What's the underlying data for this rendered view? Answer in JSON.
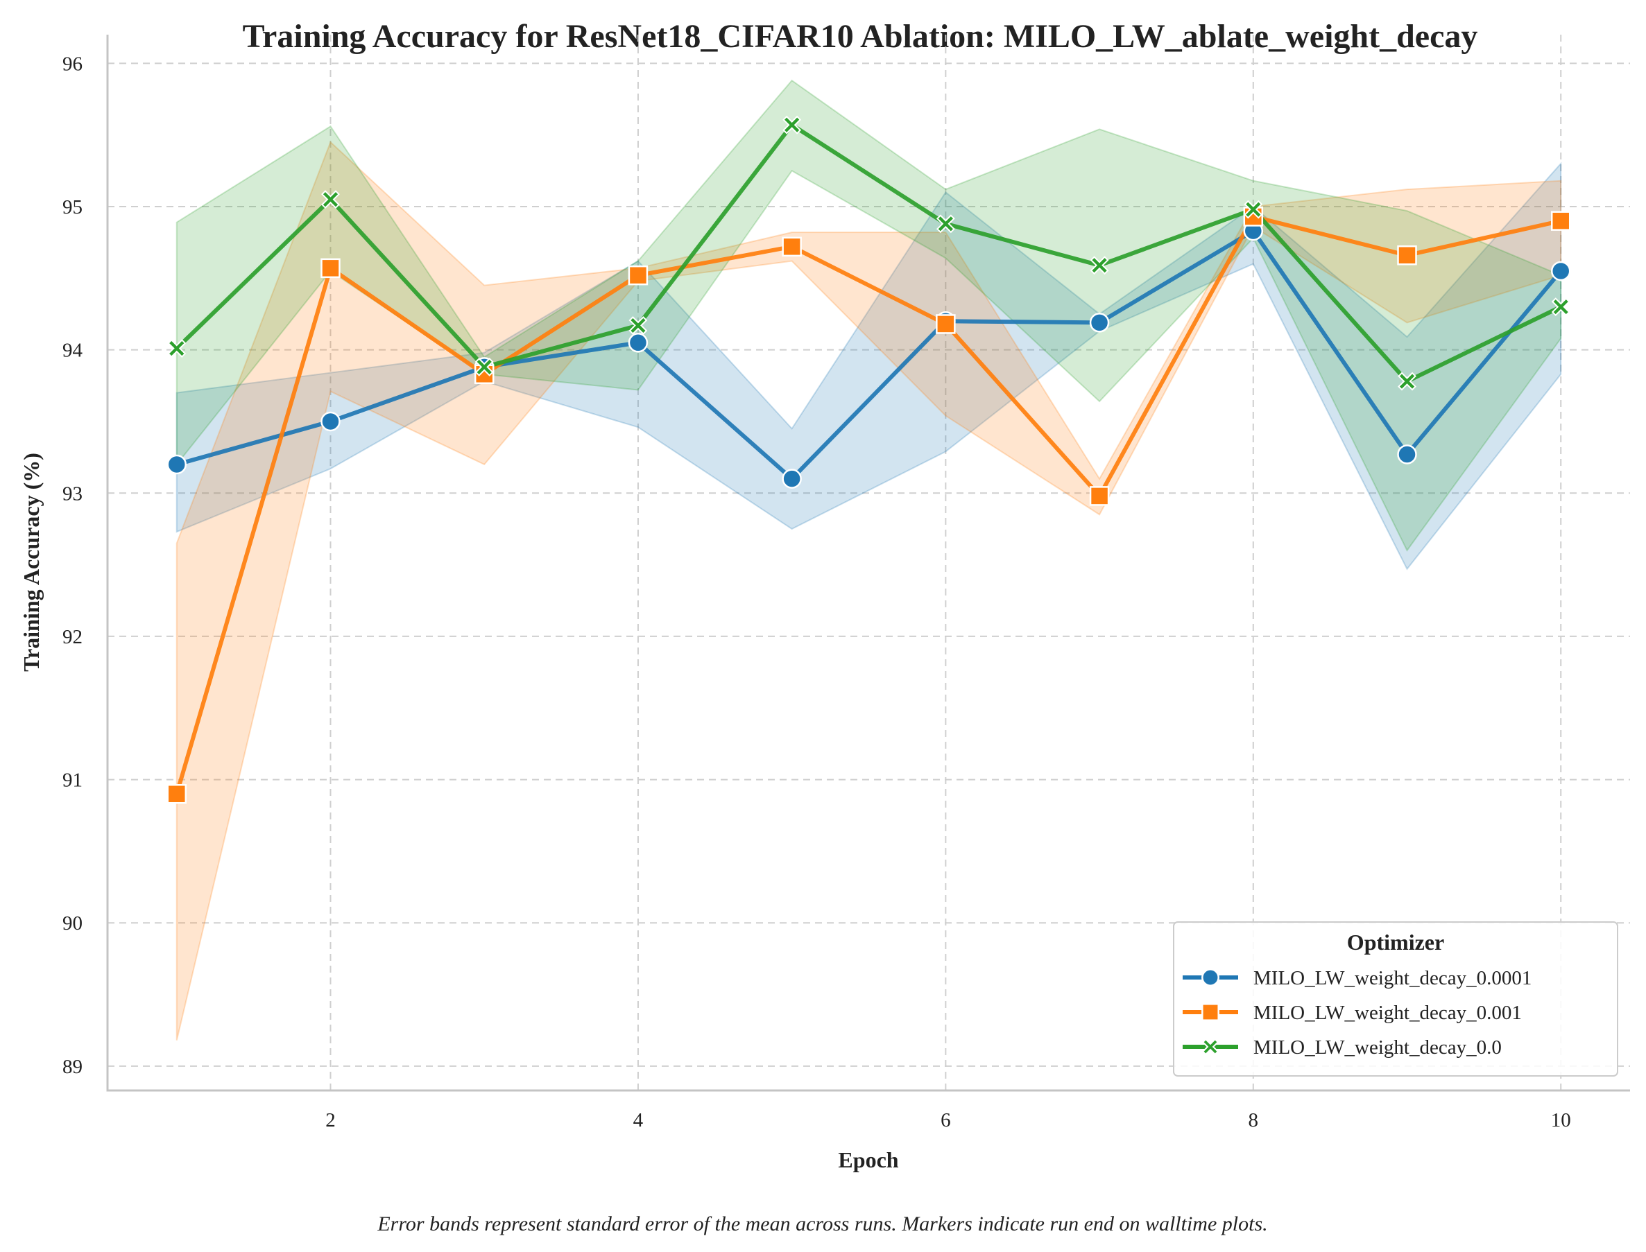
{
  "chart_data": {
    "type": "line",
    "title": "Training Accuracy for ResNet18_CIFAR10 Ablation: MILO_LW_ablate_weight_decay",
    "xlabel": "Epoch",
    "ylabel": "Training Accuracy (%)",
    "caption": "Error bands represent standard error of the mean across runs. Markers indicate run end on walltime plots.",
    "xlim": [
      0.55,
      10.45
    ],
    "ylim": [
      88.83,
      96.2
    ],
    "xticks": [
      2,
      4,
      6,
      8,
      10
    ],
    "yticks": [
      89,
      90,
      91,
      92,
      93,
      94,
      95,
      96
    ],
    "grid": true,
    "legend": {
      "title": "Optimizer",
      "placement": "lower-right"
    },
    "x": [
      1,
      2,
      3,
      4,
      5,
      6,
      7,
      8,
      9,
      10
    ],
    "series": [
      {
        "name": "MILO_LW_weight_decay_0.0001",
        "color": "#1f77b4",
        "marker": "circle",
        "values": [
          93.2,
          93.5,
          93.88,
          94.05,
          93.1,
          94.2,
          94.19,
          94.83,
          93.27,
          94.55
        ],
        "lower": [
          92.73,
          93.17,
          93.78,
          93.46,
          92.75,
          93.29,
          94.13,
          94.6,
          92.47,
          93.83
        ],
        "upper": [
          93.7,
          93.84,
          93.98,
          94.62,
          93.45,
          95.1,
          94.25,
          95.0,
          94.09,
          95.3
        ]
      },
      {
        "name": "MILO_LW_weight_decay_0.001",
        "color": "#ff7f0e",
        "marker": "square",
        "values": [
          90.9,
          94.57,
          93.83,
          94.52,
          94.72,
          94.18,
          92.98,
          94.93,
          94.66,
          94.9
        ],
        "lower": [
          89.18,
          93.71,
          93.2,
          94.48,
          94.62,
          93.54,
          92.85,
          94.86,
          94.19,
          94.52
        ],
        "upper": [
          92.65,
          95.45,
          94.45,
          94.57,
          94.82,
          94.82,
          93.1,
          95.0,
          95.12,
          95.18
        ]
      },
      {
        "name": "MILO_LW_weight_decay_0.0",
        "color": "#2ca02c",
        "marker": "x",
        "values": [
          94.01,
          95.05,
          93.88,
          94.17,
          95.57,
          94.88,
          94.59,
          94.98,
          93.78,
          94.3
        ],
        "lower": [
          93.2,
          94.55,
          93.83,
          93.72,
          95.25,
          94.64,
          93.64,
          94.78,
          92.6,
          94.08
        ],
        "upper": [
          94.89,
          95.56,
          93.95,
          94.62,
          95.88,
          95.12,
          95.54,
          95.18,
          94.97,
          94.52
        ]
      }
    ]
  }
}
